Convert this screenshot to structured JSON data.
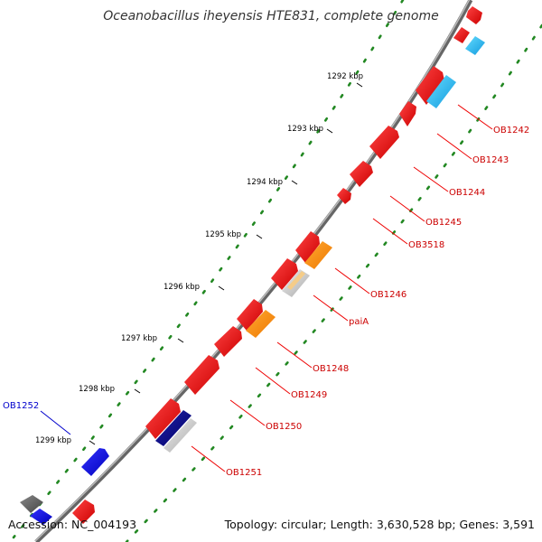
{
  "title": "Oceanobacillus iheyensis HTE831, complete genome",
  "accession": "Accession: NC_004193",
  "summary": "Topology: circular; Length: 3,630,528 bp; Genes: 3,591",
  "ticks": [
    "1292 kbp",
    "1293 kbp",
    "1294 kbp",
    "1295 kbp",
    "1296 kbp",
    "1297 kbp",
    "1298 kbp",
    "1299 kbp"
  ],
  "genes": [
    {
      "label": "OB1242",
      "color": "#cc0000"
    },
    {
      "label": "OB1243",
      "color": "#cc0000"
    },
    {
      "label": "OB1244",
      "color": "#cc0000"
    },
    {
      "label": "OB1245",
      "color": "#cc0000"
    },
    {
      "label": "OB3518",
      "color": "#cc0000"
    },
    {
      "label": "OB1246",
      "color": "#cc0000"
    },
    {
      "label": "paiA",
      "color": "#cc0000"
    },
    {
      "label": "OB1248",
      "color": "#cc0000"
    },
    {
      "label": "OB1249",
      "color": "#cc0000"
    },
    {
      "label": "OB1250",
      "color": "#cc0000"
    },
    {
      "label": "OB1251",
      "color": "#cc0000"
    },
    {
      "label": "OB1252",
      "color": "#0000cc"
    }
  ],
  "colors": {
    "backbone": "#888888",
    "cds": "#ee0000",
    "rrna": "#22bbee",
    "trna": "#ff8800",
    "minus_strand": "#0000ee",
    "pseudo": "#666666",
    "gc_dots": "#228822"
  }
}
